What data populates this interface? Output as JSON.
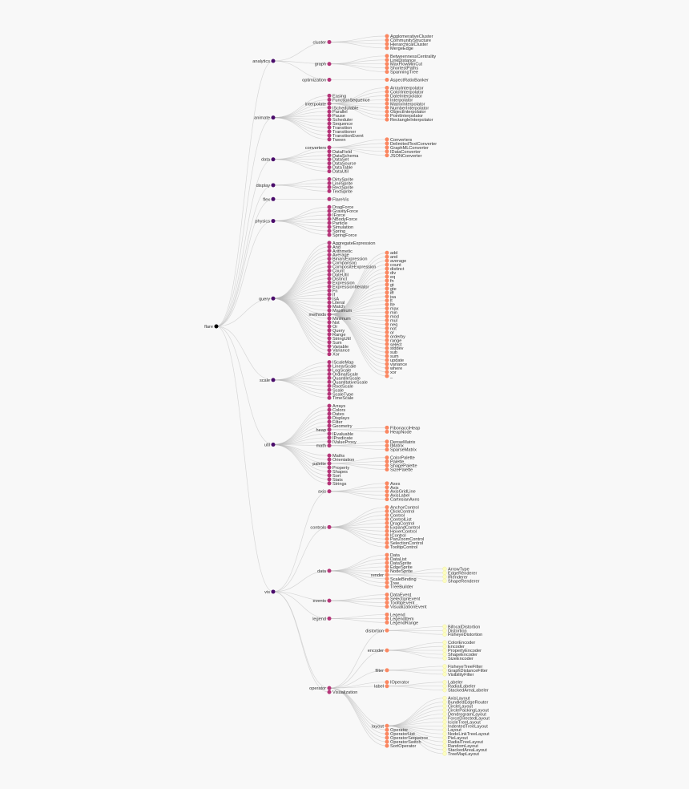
{
  "colors": {
    "depth0": "#000004",
    "depth1": "#4a0c6b",
    "depth2": "#b5367a",
    "depth3": "#fb8761",
    "depth4": "#fcfdbf",
    "link": "#bbbbbb",
    "background": "#f8f8f8"
  },
  "tree": {
    "name": "flare",
    "children": [
      {
        "name": "analytics",
        "children": [
          {
            "name": "cluster",
            "children": [
              {
                "name": "AgglomerativeCluster"
              },
              {
                "name": "CommunityStructure"
              },
              {
                "name": "HierarchicalCluster"
              },
              {
                "name": "MergeEdge"
              }
            ]
          },
          {
            "name": "graph",
            "children": [
              {
                "name": "BetweennessCentrality"
              },
              {
                "name": "LinkDistance"
              },
              {
                "name": "MaxFlowMinCut"
              },
              {
                "name": "ShortestPaths"
              },
              {
                "name": "SpanningTree"
              }
            ]
          },
          {
            "name": "optimization",
            "children": [
              {
                "name": "AspectRatioBanker"
              }
            ]
          }
        ]
      },
      {
        "name": "animate",
        "children": [
          {
            "name": "Easing"
          },
          {
            "name": "FunctionSequence"
          },
          {
            "name": "interpolate",
            "children": [
              {
                "name": "ArrayInterpolator"
              },
              {
                "name": "ColorInterpolator"
              },
              {
                "name": "DateInterpolator"
              },
              {
                "name": "Interpolator"
              },
              {
                "name": "MatrixInterpolator"
              },
              {
                "name": "NumberInterpolator"
              },
              {
                "name": "ObjectInterpolator"
              },
              {
                "name": "PointInterpolator"
              },
              {
                "name": "RectangleInterpolator"
              }
            ]
          },
          {
            "name": "ISchedulable"
          },
          {
            "name": "Parallel"
          },
          {
            "name": "Pause"
          },
          {
            "name": "Scheduler"
          },
          {
            "name": "Sequence"
          },
          {
            "name": "Transition"
          },
          {
            "name": "Transitioner"
          },
          {
            "name": "TransitionEvent"
          },
          {
            "name": "Tween"
          }
        ]
      },
      {
        "name": "data",
        "children": [
          {
            "name": "converters",
            "children": [
              {
                "name": "Converters"
              },
              {
                "name": "DelimitedTextConverter"
              },
              {
                "name": "GraphMLConverter"
              },
              {
                "name": "IDataConverter"
              },
              {
                "name": "JSONConverter"
              }
            ]
          },
          {
            "name": "DataField"
          },
          {
            "name": "DataSchema"
          },
          {
            "name": "DataSet"
          },
          {
            "name": "DataSource"
          },
          {
            "name": "DataTable"
          },
          {
            "name": "DataUtil"
          }
        ]
      },
      {
        "name": "display",
        "children": [
          {
            "name": "DirtySprite"
          },
          {
            "name": "LineSprite"
          },
          {
            "name": "RectSprite"
          },
          {
            "name": "TextSprite"
          }
        ]
      },
      {
        "name": "flex",
        "children": [
          {
            "name": "FlareVis"
          }
        ]
      },
      {
        "name": "physics",
        "children": [
          {
            "name": "DragForce"
          },
          {
            "name": "GravityForce"
          },
          {
            "name": "IForce"
          },
          {
            "name": "NBodyForce"
          },
          {
            "name": "Particle"
          },
          {
            "name": "Simulation"
          },
          {
            "name": "Spring"
          },
          {
            "name": "SpringForce"
          }
        ]
      },
      {
        "name": "query",
        "children": [
          {
            "name": "AggregateExpression"
          },
          {
            "name": "And"
          },
          {
            "name": "Arithmetic"
          },
          {
            "name": "Average"
          },
          {
            "name": "BinaryExpression"
          },
          {
            "name": "Comparison"
          },
          {
            "name": "CompositeExpression"
          },
          {
            "name": "Count"
          },
          {
            "name": "DateUtil"
          },
          {
            "name": "Distinct"
          },
          {
            "name": "Expression"
          },
          {
            "name": "ExpressionIterator"
          },
          {
            "name": "Fn"
          },
          {
            "name": "If"
          },
          {
            "name": "IsA"
          },
          {
            "name": "Literal"
          },
          {
            "name": "Match"
          },
          {
            "name": "Maximum"
          },
          {
            "name": "methods",
            "children": [
              {
                "name": "add"
              },
              {
                "name": "and"
              },
              {
                "name": "average"
              },
              {
                "name": "count"
              },
              {
                "name": "distinct"
              },
              {
                "name": "div"
              },
              {
                "name": "eq"
              },
              {
                "name": "fn"
              },
              {
                "name": "gt"
              },
              {
                "name": "gte"
              },
              {
                "name": "iff"
              },
              {
                "name": "isa"
              },
              {
                "name": "lt"
              },
              {
                "name": "lte"
              },
              {
                "name": "max"
              },
              {
                "name": "min"
              },
              {
                "name": "mod"
              },
              {
                "name": "mul"
              },
              {
                "name": "neq"
              },
              {
                "name": "not"
              },
              {
                "name": "or"
              },
              {
                "name": "orderby"
              },
              {
                "name": "range"
              },
              {
                "name": "select"
              },
              {
                "name": "stddev"
              },
              {
                "name": "sub"
              },
              {
                "name": "sum"
              },
              {
                "name": "update"
              },
              {
                "name": "variance"
              },
              {
                "name": "where"
              },
              {
                "name": "xor"
              },
              {
                "name": "_"
              }
            ]
          },
          {
            "name": "Minimum"
          },
          {
            "name": "Not"
          },
          {
            "name": "Or"
          },
          {
            "name": "Query"
          },
          {
            "name": "Range"
          },
          {
            "name": "StringUtil"
          },
          {
            "name": "Sum"
          },
          {
            "name": "Variable"
          },
          {
            "name": "Variance"
          },
          {
            "name": "Xor"
          }
        ]
      },
      {
        "name": "scale",
        "children": [
          {
            "name": "IScaleMap"
          },
          {
            "name": "LinearScale"
          },
          {
            "name": "LogScale"
          },
          {
            "name": "OrdinalScale"
          },
          {
            "name": "QuantileScale"
          },
          {
            "name": "QuantitativeScale"
          },
          {
            "name": "RootScale"
          },
          {
            "name": "Scale"
          },
          {
            "name": "ScaleType"
          },
          {
            "name": "TimeScale"
          }
        ]
      },
      {
        "name": "util",
        "children": [
          {
            "name": "Arrays"
          },
          {
            "name": "Colors"
          },
          {
            "name": "Dates"
          },
          {
            "name": "Displays"
          },
          {
            "name": "Filter"
          },
          {
            "name": "Geometry"
          },
          {
            "name": "heap",
            "children": [
              {
                "name": "FibonacciHeap"
              },
              {
                "name": "HeapNode"
              }
            ]
          },
          {
            "name": "IEvaluable"
          },
          {
            "name": "IPredicate"
          },
          {
            "name": "IValueProxy"
          },
          {
            "name": "math",
            "children": [
              {
                "name": "DenseMatrix"
              },
              {
                "name": "IMatrix"
              },
              {
                "name": "SparseMatrix"
              }
            ]
          },
          {
            "name": "Maths"
          },
          {
            "name": "Orientation"
          },
          {
            "name": "palette",
            "children": [
              {
                "name": "ColorPalette"
              },
              {
                "name": "Palette"
              },
              {
                "name": "ShapePalette"
              },
              {
                "name": "SizePalette"
              }
            ]
          },
          {
            "name": "Property"
          },
          {
            "name": "Shapes"
          },
          {
            "name": "Sort"
          },
          {
            "name": "Stats"
          },
          {
            "name": "Strings"
          }
        ]
      },
      {
        "name": "vis",
        "children": [
          {
            "name": "axis",
            "children": [
              {
                "name": "Axes"
              },
              {
                "name": "Axis"
              },
              {
                "name": "AxisGridLine"
              },
              {
                "name": "AxisLabel"
              },
              {
                "name": "CartesianAxes"
              }
            ]
          },
          {
            "name": "controls",
            "children": [
              {
                "name": "AnchorControl"
              },
              {
                "name": "ClickControl"
              },
              {
                "name": "Control"
              },
              {
                "name": "ControlList"
              },
              {
                "name": "DragControl"
              },
              {
                "name": "ExpandControl"
              },
              {
                "name": "HoverControl"
              },
              {
                "name": "IControl"
              },
              {
                "name": "PanZoomControl"
              },
              {
                "name": "SelectionControl"
              },
              {
                "name": "TooltipControl"
              }
            ]
          },
          {
            "name": "data",
            "children": [
              {
                "name": "Data"
              },
              {
                "name": "DataList"
              },
              {
                "name": "DataSprite"
              },
              {
                "name": "EdgeSprite"
              },
              {
                "name": "NodeSprite"
              },
              {
                "name": "render",
                "children": [
                  {
                    "name": "ArrowType"
                  },
                  {
                    "name": "EdgeRenderer"
                  },
                  {
                    "name": "IRenderer"
                  },
                  {
                    "name": "ShapeRenderer"
                  }
                ]
              },
              {
                "name": "ScaleBinding"
              },
              {
                "name": "Tree"
              },
              {
                "name": "TreeBuilder"
              }
            ]
          },
          {
            "name": "events",
            "children": [
              {
                "name": "DataEvent"
              },
              {
                "name": "SelectionEvent"
              },
              {
                "name": "TooltipEvent"
              },
              {
                "name": "VisualizationEvent"
              }
            ]
          },
          {
            "name": "legend",
            "children": [
              {
                "name": "Legend"
              },
              {
                "name": "LegendItem"
              },
              {
                "name": "LegendRange"
              }
            ]
          },
          {
            "name": "operator",
            "children": [
              {
                "name": "distortion",
                "children": [
                  {
                    "name": "BifocalDistortion"
                  },
                  {
                    "name": "Distortion"
                  },
                  {
                    "name": "FisheyeDistortion"
                  }
                ]
              },
              {
                "name": "encoder",
                "children": [
                  {
                    "name": "ColorEncoder"
                  },
                  {
                    "name": "Encoder"
                  },
                  {
                    "name": "PropertyEncoder"
                  },
                  {
                    "name": "ShapeEncoder"
                  },
                  {
                    "name": "SizeEncoder"
                  }
                ]
              },
              {
                "name": "filter",
                "children": [
                  {
                    "name": "FisheyeTreeFilter"
                  },
                  {
                    "name": "GraphDistanceFilter"
                  },
                  {
                    "name": "VisibilityFilter"
                  }
                ]
              },
              {
                "name": "IOperator"
              },
              {
                "name": "label",
                "children": [
                  {
                    "name": "Labeler"
                  },
                  {
                    "name": "RadialLabeler"
                  },
                  {
                    "name": "StackedAreaLabeler"
                  }
                ]
              },
              {
                "name": "layout",
                "children": [
                  {
                    "name": "AxisLayout"
                  },
                  {
                    "name": "BundledEdgeRouter"
                  },
                  {
                    "name": "CircleLayout"
                  },
                  {
                    "name": "CirclePackingLayout"
                  },
                  {
                    "name": "DendrogramLayout"
                  },
                  {
                    "name": "ForceDirectedLayout"
                  },
                  {
                    "name": "IcicleTreeLayout"
                  },
                  {
                    "name": "IndentedTreeLayout"
                  },
                  {
                    "name": "Layout"
                  },
                  {
                    "name": "NodeLinkTreeLayout"
                  },
                  {
                    "name": "PieLayout"
                  },
                  {
                    "name": "RadialTreeLayout"
                  },
                  {
                    "name": "RandomLayout"
                  },
                  {
                    "name": "StackedAreaLayout"
                  },
                  {
                    "name": "TreeMapLayout"
                  }
                ]
              },
              {
                "name": "Operator"
              },
              {
                "name": "OperatorList"
              },
              {
                "name": "OperatorSequence"
              },
              {
                "name": "OperatorSwitch"
              },
              {
                "name": "SortOperator"
              }
            ]
          },
          {
            "name": "Visualization"
          }
        ]
      }
    ]
  }
}
